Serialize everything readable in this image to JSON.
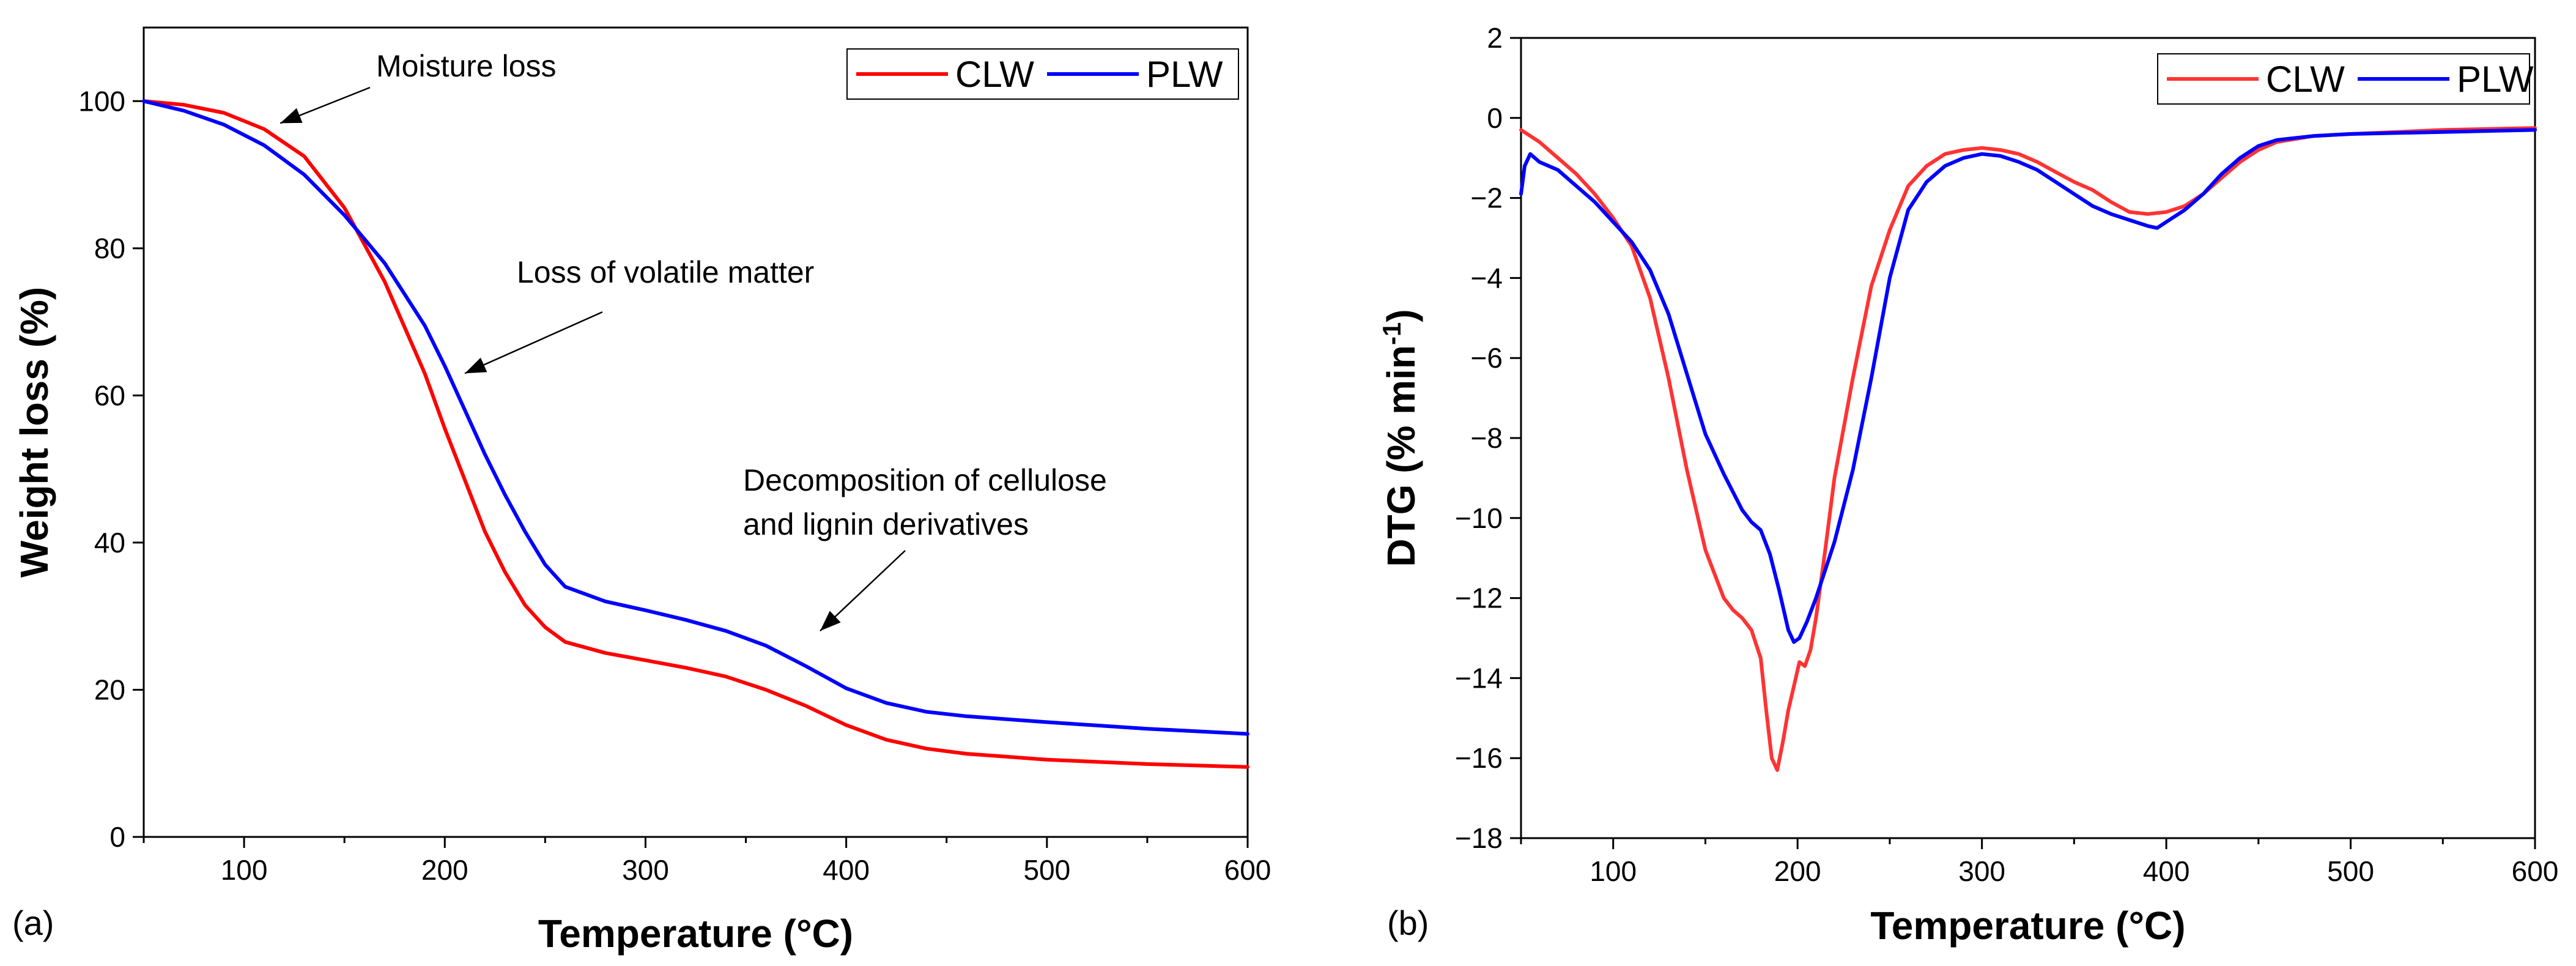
{
  "chart_data": [
    {
      "panel": "(a)",
      "type": "line",
      "title": "",
      "xlabel": "Temperature (°C)",
      "ylabel": "Weight loss (%)",
      "xlim": [
        50,
        600
      ],
      "ylim": [
        0,
        110
      ],
      "xticks": [
        100,
        200,
        300,
        400,
        500,
        600
      ],
      "yticks": [
        0,
        20,
        40,
        60,
        80,
        100
      ],
      "grid": false,
      "legend_position": "top-right",
      "series": [
        {
          "name": "CLW",
          "color": "#ff0000",
          "x": [
            50,
            70,
            90,
            110,
            130,
            150,
            170,
            190,
            200,
            210,
            220,
            230,
            240,
            250,
            260,
            280,
            300,
            320,
            340,
            360,
            380,
            400,
            420,
            440,
            460,
            480,
            500,
            550,
            600
          ],
          "y": [
            100,
            99.5,
            98.4,
            96.2,
            92.5,
            85.5,
            75.5,
            63,
            55.5,
            48.5,
            41.5,
            36,
            31.5,
            28.5,
            26.5,
            25,
            24,
            23,
            21.8,
            20,
            17.8,
            15.2,
            13.2,
            12,
            11.3,
            10.9,
            10.5,
            9.9,
            9.5
          ]
        },
        {
          "name": "PLW",
          "color": "#0000ff",
          "x": [
            50,
            70,
            90,
            110,
            130,
            150,
            170,
            190,
            200,
            210,
            220,
            230,
            240,
            250,
            260,
            280,
            300,
            320,
            340,
            360,
            380,
            400,
            420,
            440,
            460,
            480,
            500,
            550,
            600
          ],
          "y": [
            100,
            98.7,
            96.8,
            94,
            90,
            84.5,
            78,
            69.5,
            64,
            58,
            52,
            46.5,
            41.5,
            37,
            34,
            32,
            30.8,
            29.5,
            28,
            26,
            23.2,
            20.2,
            18.2,
            17,
            16.4,
            16,
            15.6,
            14.7,
            14
          ]
        }
      ],
      "annotations": [
        {
          "lines": [
            "Moisture loss"
          ],
          "arrow_to": [
            118,
            97
          ]
        },
        {
          "lines": [
            "Loss of volatile matter"
          ],
          "arrow_to": [
            210,
            63
          ]
        },
        {
          "lines": [
            "Decomposition of cellulose",
            "and lignin derivatives"
          ],
          "arrow_to": [
            387,
            28
          ]
        }
      ]
    },
    {
      "panel": "(b)",
      "type": "line",
      "title": "",
      "xlabel": "Temperature (°C)",
      "ylabel": "DTG (% min",
      "ylabel_superscript": "-1",
      "ylabel_suffix": ")",
      "xlim": [
        50,
        600
      ],
      "ylim": [
        -18,
        2
      ],
      "xticks": [
        100,
        200,
        300,
        400,
        500,
        600
      ],
      "yticks": [
        -18,
        -16,
        -14,
        -12,
        -10,
        -8,
        -6,
        -4,
        -2,
        0,
        2
      ],
      "grid": false,
      "legend_position": "top-right",
      "series": [
        {
          "name": "CLW",
          "color": "#ff3333",
          "x": [
            50,
            60,
            70,
            80,
            90,
            100,
            110,
            120,
            130,
            140,
            150,
            160,
            165,
            170,
            175,
            180,
            183,
            186,
            189,
            192,
            195,
            198,
            201,
            204,
            207,
            210,
            215,
            220,
            230,
            240,
            250,
            260,
            270,
            280,
            290,
            300,
            310,
            320,
            330,
            340,
            350,
            360,
            370,
            380,
            390,
            400,
            410,
            420,
            430,
            440,
            450,
            460,
            480,
            500,
            550,
            600
          ],
          "y": [
            -0.3,
            -0.6,
            -1.0,
            -1.4,
            -1.9,
            -2.5,
            -3.2,
            -4.5,
            -6.5,
            -8.8,
            -10.8,
            -12.0,
            -12.3,
            -12.5,
            -12.8,
            -13.5,
            -14.8,
            -16.0,
            -16.3,
            -15.6,
            -14.8,
            -14.2,
            -13.6,
            -13.7,
            -13.3,
            -12.5,
            -10.8,
            -9.0,
            -6.5,
            -4.2,
            -2.8,
            -1.7,
            -1.2,
            -0.9,
            -0.8,
            -0.75,
            -0.8,
            -0.9,
            -1.1,
            -1.35,
            -1.6,
            -1.8,
            -2.1,
            -2.35,
            -2.4,
            -2.35,
            -2.2,
            -1.9,
            -1.5,
            -1.1,
            -0.8,
            -0.6,
            -0.45,
            -0.4,
            -0.3,
            -0.25
          ]
        },
        {
          "name": "PLW",
          "color": "#0000ff",
          "x": [
            50,
            52,
            55,
            60,
            70,
            80,
            90,
            100,
            110,
            120,
            130,
            140,
            150,
            160,
            170,
            175,
            180,
            185,
            190,
            195,
            198,
            201,
            205,
            210,
            220,
            230,
            240,
            250,
            260,
            270,
            280,
            290,
            300,
            310,
            320,
            330,
            340,
            350,
            360,
            370,
            380,
            390,
            395,
            400,
            410,
            420,
            430,
            440,
            450,
            460,
            480,
            500,
            550,
            600
          ],
          "y": [
            -1.9,
            -1.2,
            -0.9,
            -1.1,
            -1.3,
            -1.7,
            -2.1,
            -2.6,
            -3.1,
            -3.8,
            -4.9,
            -6.4,
            -7.9,
            -8.9,
            -9.8,
            -10.1,
            -10.3,
            -10.9,
            -11.8,
            -12.8,
            -13.1,
            -13.0,
            -12.6,
            -12.0,
            -10.6,
            -8.8,
            -6.5,
            -4.0,
            -2.3,
            -1.6,
            -1.2,
            -1.0,
            -0.9,
            -0.95,
            -1.1,
            -1.3,
            -1.6,
            -1.9,
            -2.2,
            -2.4,
            -2.55,
            -2.7,
            -2.75,
            -2.6,
            -2.3,
            -1.9,
            -1.4,
            -1.0,
            -0.7,
            -0.55,
            -0.45,
            -0.4,
            -0.35,
            -0.3
          ]
        }
      ],
      "annotations": []
    }
  ]
}
